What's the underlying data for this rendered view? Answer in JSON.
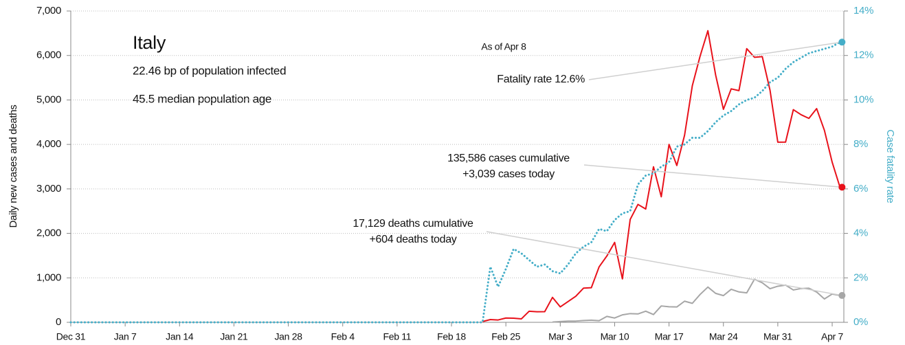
{
  "chart_data": {
    "type": "line",
    "title": "Italy",
    "notes": [
      "22.46 bp of population infected",
      "45.5 median population age"
    ],
    "annotations": [
      "As of Apr 8",
      "Fatality rate 12.6%",
      "135,586 cases cumulative",
      "+3,039 cases today",
      "17,129 deaths cumulative",
      "+604 deaths today"
    ],
    "ylabel": "Daily new cases and deaths",
    "y2label": "Case fatality rate",
    "categories": [
      "Dec 31",
      null,
      null,
      null,
      null,
      null,
      null,
      "Jan 7",
      null,
      null,
      null,
      null,
      null,
      null,
      "Jan 14",
      null,
      null,
      null,
      null,
      null,
      null,
      "Jan 21",
      null,
      null,
      null,
      null,
      null,
      null,
      "Jan 28",
      null,
      null,
      null,
      null,
      null,
      null,
      "Feb 4",
      null,
      null,
      null,
      null,
      null,
      null,
      "Feb 11",
      null,
      null,
      null,
      null,
      null,
      null,
      "Feb 18",
      null,
      null,
      null,
      null,
      null,
      null,
      "Feb 25",
      null,
      null,
      null,
      null,
      null,
      null,
      "Mar 3",
      null,
      null,
      null,
      null,
      null,
      null,
      "Mar 10",
      null,
      null,
      null,
      null,
      null,
      null,
      "Mar 17",
      null,
      null,
      null,
      null,
      null,
      null,
      "Mar 24",
      null,
      null,
      null,
      null,
      null,
      null,
      "Mar 31",
      null,
      null,
      null,
      null,
      null,
      null,
      "Apr 7",
      null
    ],
    "series": [
      {
        "name": "Daily new cases",
        "color": "#e8111a",
        "line_style": "solid",
        "values": [
          null,
          null,
          null,
          null,
          null,
          null,
          null,
          null,
          null,
          null,
          null,
          null,
          null,
          null,
          null,
          null,
          null,
          null,
          null,
          null,
          null,
          null,
          null,
          null,
          null,
          null,
          null,
          null,
          null,
          null,
          null,
          null,
          null,
          null,
          null,
          null,
          null,
          null,
          null,
          null,
          null,
          null,
          null,
          null,
          null,
          null,
          null,
          null,
          null,
          null,
          null,
          null,
          null,
          17,
          62,
          53,
          97,
          93,
          78,
          250,
          238,
          240,
          561,
          347,
          466,
          587,
          769,
          778,
          1247,
          1492,
          1797,
          977,
          2313,
          2651,
          2547,
          3497,
          2823,
          4000,
          3526,
          4207,
          5322,
          5986,
          6557,
          5560,
          4789,
          5249,
          5210,
          6153,
          5959,
          5974,
          5217,
          4050,
          4053,
          4782,
          4668,
          4585,
          4805,
          4316,
          3599,
          3039
        ]
      },
      {
        "name": "Daily new deaths",
        "color": "#a6a6a6",
        "line_style": "solid",
        "values": [
          null,
          null,
          null,
          null,
          null,
          null,
          null,
          null,
          null,
          null,
          null,
          null,
          null,
          null,
          null,
          null,
          null,
          null,
          null,
          null,
          null,
          null,
          null,
          null,
          null,
          null,
          null,
          null,
          null,
          null,
          null,
          null,
          null,
          null,
          null,
          null,
          null,
          null,
          null,
          null,
          null,
          null,
          null,
          null,
          null,
          null,
          null,
          null,
          null,
          null,
          null,
          null,
          null,
          null,
          null,
          null,
          null,
          null,
          null,
          null,
          null,
          null,
          5,
          18,
          27,
          28,
          41,
          49,
          36,
          133,
          97,
          168,
          196,
          189,
          250,
          175,
          368,
          349,
          345,
          475,
          427,
          627,
          793,
          651,
          601,
          743,
          683,
          662,
          969,
          889,
          756,
          812,
          837,
          727,
          760,
          766,
          681,
          525,
          636,
          604
        ]
      },
      {
        "name": "Case fatality rate",
        "color": "#45aec8",
        "line_style": "dotted",
        "axis": "y2",
        "values": [
          0,
          0,
          0,
          0,
          0,
          0,
          0,
          0,
          0,
          0,
          0,
          0,
          0,
          0,
          0,
          0,
          0,
          0,
          0,
          0,
          0,
          0,
          0,
          0,
          0,
          0,
          0,
          0,
          0,
          0,
          0,
          0,
          0,
          0,
          0,
          0,
          0,
          0,
          0,
          0,
          0,
          0,
          0,
          0,
          0,
          0,
          0,
          0,
          0,
          0,
          0,
          0,
          0,
          0,
          2.5,
          1.6,
          2.4,
          3.3,
          3.1,
          2.8,
          2.5,
          2.6,
          2.3,
          2.2,
          2.6,
          3.1,
          3.4,
          3.6,
          4.2,
          4.1,
          4.6,
          4.9,
          5.0,
          6.2,
          6.6,
          6.7,
          7.0,
          7.2,
          7.9,
          8.0,
          8.3,
          8.3,
          8.6,
          9.0,
          9.3,
          9.5,
          9.8,
          10.0,
          10.1,
          10.4,
          10.8,
          11.0,
          11.4,
          11.7,
          11.9,
          12.1,
          12.2,
          12.3,
          12.4,
          12.6
        ]
      }
    ],
    "ylim": [
      0,
      7000
    ],
    "yticks": [
      0,
      {
        "value": 1000,
        "label": "1,000"
      },
      {
        "value": 2000,
        "label": "2,000"
      },
      {
        "value": 3000,
        "label": "3,000"
      },
      {
        "value": 4000,
        "label": "4,000"
      },
      {
        "value": 5000,
        "label": "5,000"
      },
      {
        "value": 6000,
        "label": "6,000"
      },
      {
        "value": 7000,
        "label": "7,000"
      }
    ],
    "y2lim": [
      0,
      14
    ],
    "y2ticks": [
      {
        "value": 0,
        "label": "0%"
      },
      {
        "value": 2,
        "label": "2%"
      },
      {
        "value": 4,
        "label": "4%"
      },
      {
        "value": 6,
        "label": "6%"
      },
      {
        "value": 8,
        "label": "8%"
      },
      {
        "value": 10,
        "label": "10%"
      },
      {
        "value": 12,
        "label": "12%"
      },
      {
        "value": 14,
        "label": "14%"
      }
    ],
    "grid": true
  }
}
